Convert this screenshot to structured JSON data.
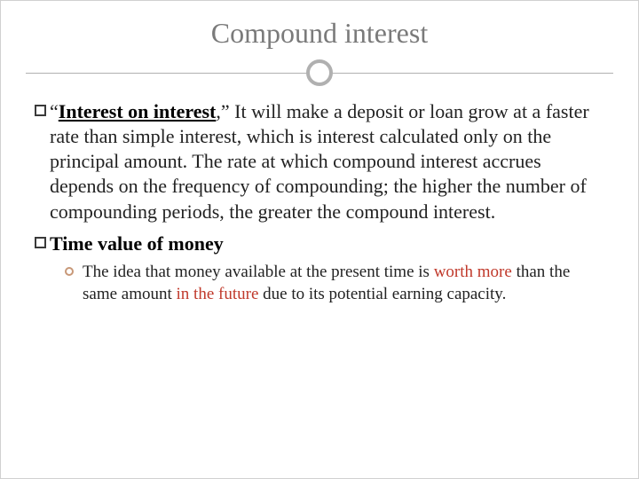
{
  "title": "Compound interest",
  "colors": {
    "title_text": "#7a7a7a",
    "divider": "#b0b0b0",
    "body_text": "#222222",
    "square_bullet_border": "#3a3a3a",
    "circle_bullet_border": "#c89878",
    "highlight": "#c0392b",
    "background": "#ffffff"
  },
  "typography": {
    "title_fontsize": 32,
    "body_fontsize": 22,
    "sub_fontsize": 19,
    "font_family": "Georgia, serif"
  },
  "bullets": [
    {
      "lead_quote_open": "“",
      "lead_bold": "Interest on interest",
      "lead_rest": ",” It will make a deposit or loan grow at a faster rate than simple interest, which is interest calculated only on the principal amount. The rate at which compound interest accrues depends on the frequency of compounding; the higher the number of compounding periods, the greater the compound interest."
    },
    {
      "lead_bold": "Time value of money",
      "sub": {
        "pre": "The idea that money available at the present time is ",
        "hl1": "worth more",
        "mid": " than the same amount ",
        "hl2": "in the future",
        "post": " due to its potential earning capacity."
      }
    }
  ]
}
